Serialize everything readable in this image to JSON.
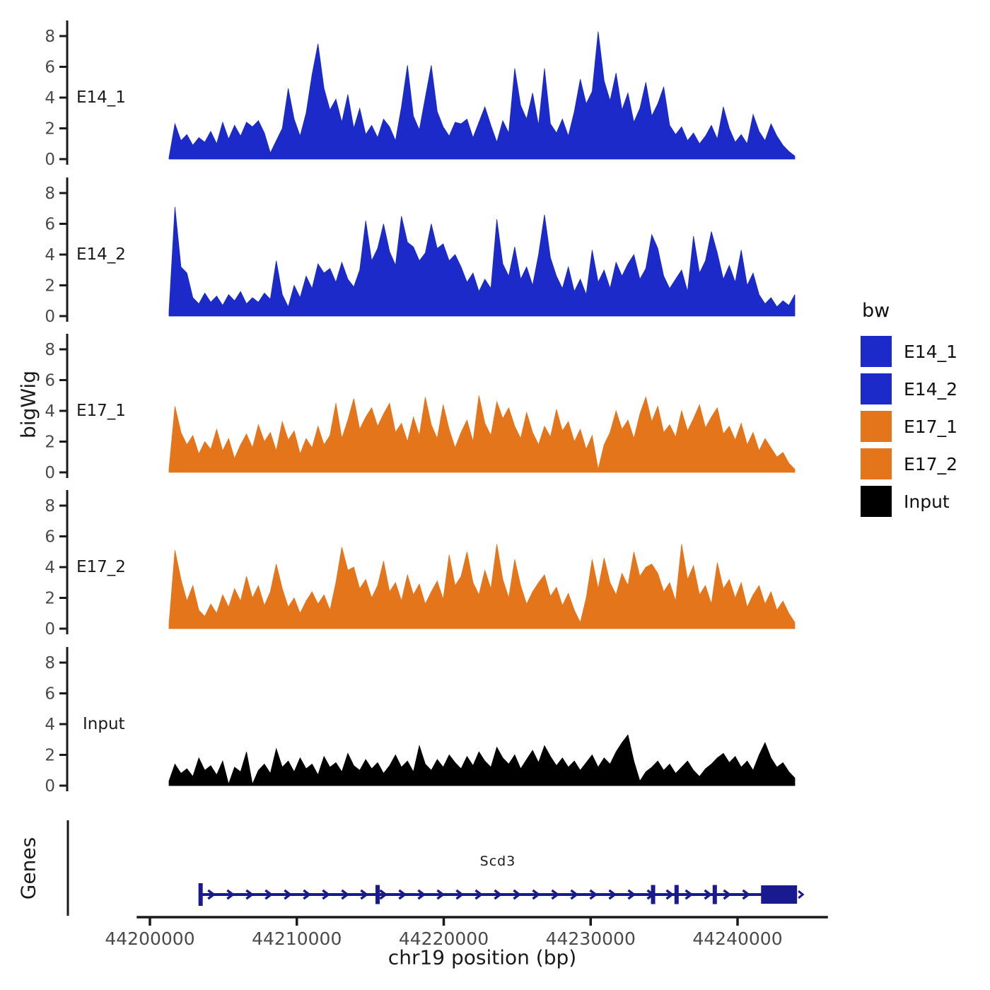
{
  "figure": {
    "y_axis_title": "bigWig",
    "genes_axis_title": "Genes",
    "x_axis_title": "chr19 position (bp)"
  },
  "legend": {
    "title": "bw",
    "items": [
      {
        "label": "E14_1",
        "color": "#1B2AC8"
      },
      {
        "label": "E14_2",
        "color": "#1B2AC8"
      },
      {
        "label": "E17_1",
        "color": "#E5751B"
      },
      {
        "label": "E17_2",
        "color": "#E5751B"
      },
      {
        "label": "Input",
        "color": "#000000"
      }
    ]
  },
  "chart_data": {
    "type": "area",
    "title": "",
    "xlabel": "chr19 position (bp)",
    "ylabel": "bigWig",
    "x_axis": {
      "ticks": [
        {
          "bp": 44200000,
          "label": "44200000"
        },
        {
          "bp": 44210000,
          "label": "44210000"
        },
        {
          "bp": 44220000,
          "label": "44220000"
        },
        {
          "bp": 44230000,
          "label": "44230000"
        },
        {
          "bp": 44240000,
          "label": "44240000"
        }
      ],
      "line_range_bp": [
        44199100,
        44246150
      ]
    },
    "y_axis": {
      "ticks": [
        0,
        2,
        4,
        6,
        8
      ],
      "range": [
        0,
        9
      ],
      "tick_labels": [
        "0",
        "2",
        "4",
        "6",
        "8"
      ]
    },
    "x_start_bp": 44201300,
    "x_end_bp": 44243900,
    "series": [
      {
        "name": "E14_1",
        "color": "#1B2AC8",
        "values": [
          0.1,
          2.3,
          1.2,
          1.6,
          0.9,
          1.4,
          1.1,
          1.8,
          1.0,
          2.4,
          1.3,
          2.2,
          1.5,
          2.4,
          2.1,
          2.5,
          1.7,
          0.4,
          1.2,
          2.0,
          4.6,
          2.6,
          1.5,
          3.0,
          5.5,
          7.5,
          4.6,
          3.2,
          3.9,
          2.4,
          4.2,
          2.0,
          3.3,
          1.6,
          2.2,
          1.4,
          2.6,
          2.1,
          1.2,
          3.4,
          6.1,
          2.8,
          1.9,
          4.0,
          6.1,
          3.1,
          2.1,
          1.5,
          2.4,
          2.3,
          2.6,
          1.4,
          2.4,
          3.4,
          2.2,
          1.1,
          2.5,
          1.7,
          5.9,
          3.5,
          2.6,
          4.3,
          2.2,
          5.9,
          2.3,
          1.7,
          2.6,
          1.5,
          3.1,
          5.2,
          3.6,
          4.4,
          8.3,
          5.1,
          3.8,
          5.6,
          3.2,
          4.3,
          2.4,
          3.3,
          5.0,
          2.8,
          3.6,
          4.7,
          2.2,
          1.6,
          2.1,
          1.2,
          1.7,
          1.0,
          1.5,
          2.2,
          1.3,
          3.4,
          2.0,
          1.1,
          1.6,
          1.0,
          2.9,
          1.8,
          1.2,
          2.3,
          1.5,
          0.9,
          0.5,
          0.2
        ]
      },
      {
        "name": "E14_2",
        "color": "#1B2AC8",
        "values": [
          0.3,
          7.1,
          3.2,
          2.8,
          1.2,
          0.8,
          1.5,
          0.9,
          1.3,
          0.7,
          1.4,
          1.0,
          1.6,
          0.8,
          1.2,
          0.9,
          1.5,
          1.1,
          3.6,
          1.4,
          0.6,
          2.0,
          1.2,
          2.6,
          1.8,
          3.4,
          2.8,
          3.1,
          2.2,
          3.5,
          2.4,
          1.9,
          3.0,
          6.2,
          3.6,
          4.4,
          6.0,
          4.2,
          3.3,
          6.5,
          4.8,
          4.5,
          3.6,
          4.1,
          6.0,
          4.4,
          4.7,
          3.6,
          4.0,
          3.2,
          2.2,
          2.8,
          1.6,
          2.4,
          1.8,
          6.3,
          3.4,
          2.6,
          4.5,
          2.4,
          3.2,
          2.0,
          4.0,
          6.6,
          3.8,
          2.6,
          1.8,
          3.2,
          1.6,
          2.4,
          1.4,
          4.3,
          2.2,
          3.0,
          1.8,
          3.5,
          2.6,
          3.4,
          4.0,
          2.4,
          3.1,
          5.3,
          4.4,
          2.6,
          1.8,
          2.4,
          3.0,
          1.6,
          5.2,
          2.8,
          3.6,
          5.5,
          4.1,
          2.4,
          3.3,
          2.2,
          4.3,
          2.0,
          2.8,
          1.4,
          0.8,
          1.2,
          0.6,
          1.0,
          0.7,
          1.4
        ]
      },
      {
        "name": "E17_1",
        "color": "#E5751B",
        "values": [
          0.2,
          4.3,
          2.6,
          1.8,
          2.4,
          1.2,
          2.0,
          1.5,
          2.8,
          1.4,
          2.2,
          0.9,
          1.8,
          2.5,
          1.6,
          3.1,
          2.0,
          2.6,
          1.4,
          3.3,
          2.1,
          2.7,
          1.2,
          2.2,
          1.6,
          3.0,
          1.8,
          2.4,
          4.5,
          2.2,
          3.4,
          4.8,
          2.8,
          3.6,
          4.2,
          3.0,
          3.8,
          4.5,
          2.6,
          3.2,
          2.0,
          3.6,
          2.4,
          4.9,
          3.1,
          2.2,
          4.4,
          2.8,
          1.6,
          2.6,
          3.4,
          2.0,
          5.0,
          3.2,
          2.4,
          4.6,
          3.5,
          4.2,
          3.0,
          2.2,
          3.9,
          2.6,
          1.8,
          3.0,
          2.3,
          4.1,
          2.7,
          3.3,
          2.0,
          2.8,
          1.5,
          2.4,
          0.2,
          1.8,
          2.6,
          4.0,
          2.8,
          3.4,
          2.2,
          3.8,
          4.9,
          3.3,
          4.3,
          2.6,
          3.1,
          2.3,
          4.0,
          2.7,
          3.5,
          4.4,
          2.9,
          3.6,
          4.2,
          2.5,
          3.0,
          2.1,
          3.2,
          1.8,
          2.6,
          1.4,
          2.2,
          1.6,
          1.0,
          1.3,
          0.6,
          0.2
        ]
      },
      {
        "name": "E17_2",
        "color": "#E5751B",
        "values": [
          0.3,
          5.1,
          3.2,
          1.8,
          2.8,
          1.2,
          0.8,
          1.6,
          1.0,
          2.2,
          1.4,
          2.6,
          1.8,
          3.4,
          2.0,
          2.8,
          1.5,
          2.4,
          4.2,
          2.6,
          1.4,
          2.0,
          1.0,
          1.8,
          2.4,
          1.6,
          2.2,
          1.2,
          3.0,
          5.3,
          3.8,
          4.0,
          2.6,
          3.2,
          2.0,
          2.8,
          4.4,
          2.4,
          3.0,
          1.8,
          3.5,
          2.2,
          2.9,
          1.6,
          2.4,
          3.1,
          1.9,
          4.8,
          2.8,
          3.4,
          5.0,
          3.0,
          2.2,
          3.8,
          2.6,
          5.5,
          3.2,
          2.0,
          4.5,
          2.8,
          1.6,
          2.4,
          3.0,
          3.5,
          2.1,
          2.7,
          1.5,
          2.3,
          1.2,
          0.4,
          2.0,
          4.5,
          2.6,
          4.6,
          3.0,
          2.2,
          3.6,
          2.8,
          5.0,
          3.4,
          4.0,
          4.2,
          3.6,
          2.4,
          3.0,
          1.8,
          5.5,
          3.2,
          4.1,
          2.2,
          2.8,
          1.6,
          4.3,
          2.6,
          3.2,
          2.0,
          3.0,
          1.4,
          2.2,
          2.8,
          1.6,
          2.4,
          1.2,
          1.8,
          1.0,
          0.4
        ]
      },
      {
        "name": "Input",
        "color": "#000000",
        "values": [
          0.3,
          1.4,
          0.8,
          1.1,
          0.6,
          1.8,
          1.0,
          1.3,
          0.7,
          1.6,
          0.1,
          1.2,
          0.9,
          2.2,
          0.1,
          1.0,
          1.4,
          0.8,
          2.4,
          1.2,
          1.6,
          0.9,
          1.8,
          1.1,
          1.4,
          0.7,
          1.9,
          1.2,
          1.5,
          0.9,
          2.1,
          1.3,
          1.0,
          1.7,
          1.1,
          1.5,
          0.8,
          1.3,
          2.0,
          1.2,
          1.6,
          0.9,
          2.6,
          1.4,
          1.0,
          1.7,
          1.2,
          2.0,
          1.5,
          1.1,
          1.9,
          1.3,
          2.2,
          1.6,
          1.2,
          2.5,
          1.8,
          1.4,
          2.0,
          1.1,
          1.7,
          2.3,
          1.5,
          2.6,
          1.9,
          1.3,
          1.8,
          1.2,
          1.6,
          1.0,
          1.5,
          2.0,
          1.2,
          1.8,
          1.4,
          2.2,
          2.8,
          3.3,
          1.6,
          0.3,
          0.9,
          1.2,
          1.6,
          1.0,
          1.4,
          0.8,
          1.2,
          1.6,
          1.0,
          0.6,
          1.1,
          1.4,
          1.8,
          2.1,
          1.5,
          1.9,
          1.2,
          1.6,
          1.0,
          2.0,
          2.8,
          1.8,
          1.2,
          1.5,
          0.9,
          0.5
        ]
      }
    ],
    "gene": {
      "name": "Scd3",
      "strand": "+",
      "color": "#191A90",
      "start_bp": 44203350,
      "end_bp": 44244050,
      "exon_ticks_bp": [
        44203450,
        44215500,
        44234250,
        44235850,
        44238450
      ],
      "final_exon_bp": [
        44241600,
        44244050
      ],
      "arrow_spacing_bp": 1300
    }
  }
}
